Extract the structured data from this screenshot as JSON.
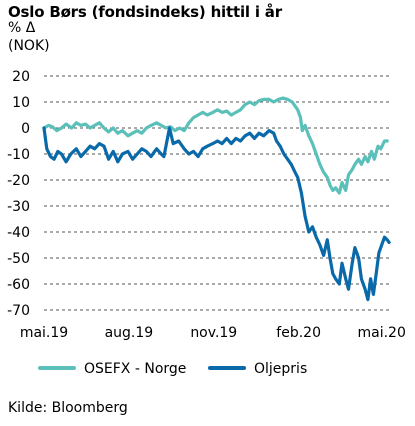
{
  "header": {
    "title": "Oslo Børs (fondsindeks) hittil i år",
    "unit_line1": "% Δ",
    "unit_line2": "(NOK)"
  },
  "source": "Kilde: Bloomberg",
  "colors": {
    "osefx": "#5bc0b9",
    "oljepris": "#0a6aa9",
    "grid": "#555555"
  },
  "chart_data": {
    "type": "line",
    "ylim": [
      -70,
      20
    ],
    "yticks": [
      20,
      10,
      0,
      -10,
      -20,
      -30,
      -40,
      -50,
      -60,
      -70
    ],
    "xlim": [
      "2019-05-01",
      "2020-05-10"
    ],
    "xticks": [
      {
        "date": "2019-05-01",
        "label": "mai.19"
      },
      {
        "date": "2019-08-01",
        "label": "aug.19"
      },
      {
        "date": "2019-11-01",
        "label": "nov.19"
      },
      {
        "date": "2020-02-01",
        "label": "feb.20"
      },
      {
        "date": "2020-05-01",
        "label": "mai.20"
      }
    ],
    "grid": "horizontal dashed",
    "legend_position": "bottom",
    "series": [
      {
        "name": "OSEFX - Norge",
        "color": "#5bc0b9",
        "points": [
          [
            "2019-05-01",
            0
          ],
          [
            "2019-05-06",
            1
          ],
          [
            "2019-05-10",
            0.5
          ],
          [
            "2019-05-15",
            -1
          ],
          [
            "2019-05-20",
            0
          ],
          [
            "2019-05-25",
            1.5
          ],
          [
            "2019-05-31",
            0
          ],
          [
            "2019-06-05",
            2
          ],
          [
            "2019-06-10",
            1
          ],
          [
            "2019-06-15",
            1.5
          ],
          [
            "2019-06-20",
            0
          ],
          [
            "2019-06-25",
            1
          ],
          [
            "2019-06-30",
            2
          ],
          [
            "2019-07-05",
            0
          ],
          [
            "2019-07-10",
            -1.5
          ],
          [
            "2019-07-15",
            0
          ],
          [
            "2019-07-20",
            -2
          ],
          [
            "2019-07-25",
            -1
          ],
          [
            "2019-07-31",
            -3
          ],
          [
            "2019-08-05",
            -2
          ],
          [
            "2019-08-10",
            -1
          ],
          [
            "2019-08-15",
            -2
          ],
          [
            "2019-08-20",
            0
          ],
          [
            "2019-08-25",
            1
          ],
          [
            "2019-08-31",
            2
          ],
          [
            "2019-09-05",
            1
          ],
          [
            "2019-09-10",
            0
          ],
          [
            "2019-09-15",
            0.5
          ],
          [
            "2019-09-20",
            -1
          ],
          [
            "2019-09-25",
            0
          ],
          [
            "2019-09-30",
            -1
          ],
          [
            "2019-10-05",
            2
          ],
          [
            "2019-10-10",
            4
          ],
          [
            "2019-10-15",
            5
          ],
          [
            "2019-10-20",
            6
          ],
          [
            "2019-10-25",
            5
          ],
          [
            "2019-10-31",
            6
          ],
          [
            "2019-11-05",
            7
          ],
          [
            "2019-11-10",
            6
          ],
          [
            "2019-11-15",
            6.5
          ],
          [
            "2019-11-20",
            5
          ],
          [
            "2019-11-25",
            6
          ],
          [
            "2019-11-30",
            7
          ],
          [
            "2019-12-05",
            9
          ],
          [
            "2019-12-10",
            10
          ],
          [
            "2019-12-15",
            9
          ],
          [
            "2019-12-20",
            10.5
          ],
          [
            "2019-12-25",
            11
          ],
          [
            "2019-12-31",
            11
          ],
          [
            "2020-01-05",
            10
          ],
          [
            "2020-01-10",
            11
          ],
          [
            "2020-01-15",
            11.5
          ],
          [
            "2020-01-20",
            11
          ],
          [
            "2020-01-25",
            10
          ],
          [
            "2020-01-31",
            7
          ],
          [
            "2020-02-03",
            4
          ],
          [
            "2020-02-05",
            -1
          ],
          [
            "2020-02-08",
            1
          ],
          [
            "2020-02-12",
            -3
          ],
          [
            "2020-02-16",
            -6
          ],
          [
            "2020-02-20",
            -10
          ],
          [
            "2020-02-24",
            -14
          ],
          [
            "2020-02-28",
            -17
          ],
          [
            "2020-03-03",
            -19
          ],
          [
            "2020-03-06",
            -22
          ],
          [
            "2020-03-09",
            -24
          ],
          [
            "2020-03-12",
            -23
          ],
          [
            "2020-03-16",
            -25
          ],
          [
            "2020-03-19",
            -21
          ],
          [
            "2020-03-23",
            -24
          ],
          [
            "2020-03-26",
            -18
          ],
          [
            "2020-03-30",
            -16
          ],
          [
            "2020-04-02",
            -14
          ],
          [
            "2020-04-06",
            -12
          ],
          [
            "2020-04-09",
            -14
          ],
          [
            "2020-04-13",
            -11
          ],
          [
            "2020-04-16",
            -13
          ],
          [
            "2020-04-20",
            -9
          ],
          [
            "2020-04-23",
            -12
          ],
          [
            "2020-04-27",
            -7
          ],
          [
            "2020-04-30",
            -8
          ],
          [
            "2020-05-04",
            -5
          ],
          [
            "2020-05-07",
            -5
          ]
        ]
      },
      {
        "name": "Oljepris",
        "color": "#0a6aa9",
        "points": [
          [
            "2019-05-01",
            0
          ],
          [
            "2019-05-04",
            -8
          ],
          [
            "2019-05-08",
            -11
          ],
          [
            "2019-05-12",
            -12
          ],
          [
            "2019-05-16",
            -9
          ],
          [
            "2019-05-20",
            -10
          ],
          [
            "2019-05-25",
            -13
          ],
          [
            "2019-05-30",
            -10
          ],
          [
            "2019-06-05",
            -8
          ],
          [
            "2019-06-10",
            -11
          ],
          [
            "2019-06-15",
            -9
          ],
          [
            "2019-06-20",
            -7
          ],
          [
            "2019-06-25",
            -8
          ],
          [
            "2019-06-30",
            -6
          ],
          [
            "2019-07-05",
            -7
          ],
          [
            "2019-07-10",
            -12
          ],
          [
            "2019-07-15",
            -9
          ],
          [
            "2019-07-20",
            -13
          ],
          [
            "2019-07-25",
            -10
          ],
          [
            "2019-07-31",
            -9
          ],
          [
            "2019-08-05",
            -12
          ],
          [
            "2019-08-10",
            -10
          ],
          [
            "2019-08-15",
            -8
          ],
          [
            "2019-08-20",
            -9
          ],
          [
            "2019-08-25",
            -11
          ],
          [
            "2019-08-31",
            -8
          ],
          [
            "2019-09-05",
            -10
          ],
          [
            "2019-09-08",
            -11
          ],
          [
            "2019-09-14",
            0
          ],
          [
            "2019-09-18",
            -6
          ],
          [
            "2019-09-24",
            -5
          ],
          [
            "2019-09-30",
            -8
          ],
          [
            "2019-10-05",
            -10
          ],
          [
            "2019-10-10",
            -9
          ],
          [
            "2019-10-15",
            -11
          ],
          [
            "2019-10-20",
            -8
          ],
          [
            "2019-10-25",
            -7
          ],
          [
            "2019-10-31",
            -6
          ],
          [
            "2019-11-05",
            -5
          ],
          [
            "2019-11-10",
            -6
          ],
          [
            "2019-11-15",
            -4
          ],
          [
            "2019-11-20",
            -6
          ],
          [
            "2019-11-25",
            -4
          ],
          [
            "2019-11-30",
            -5
          ],
          [
            "2019-12-05",
            -3
          ],
          [
            "2019-12-10",
            -2
          ],
          [
            "2019-12-15",
            -4
          ],
          [
            "2019-12-20",
            -2
          ],
          [
            "2019-12-25",
            -3
          ],
          [
            "2019-12-31",
            -1
          ],
          [
            "2020-01-05",
            -2
          ],
          [
            "2020-01-08",
            -5
          ],
          [
            "2020-01-12",
            -7
          ],
          [
            "2020-01-16",
            -10
          ],
          [
            "2020-01-20",
            -12
          ],
          [
            "2020-01-24",
            -14
          ],
          [
            "2020-01-28",
            -17
          ],
          [
            "2020-01-31",
            -19
          ],
          [
            "2020-02-04",
            -25
          ],
          [
            "2020-02-08",
            -34
          ],
          [
            "2020-02-12",
            -40
          ],
          [
            "2020-02-16",
            -38
          ],
          [
            "2020-02-20",
            -42
          ],
          [
            "2020-02-24",
            -45
          ],
          [
            "2020-02-28",
            -49
          ],
          [
            "2020-03-03",
            -43
          ],
          [
            "2020-03-06",
            -50
          ],
          [
            "2020-03-09",
            -56
          ],
          [
            "2020-03-12",
            -58
          ],
          [
            "2020-03-16",
            -60
          ],
          [
            "2020-03-19",
            -52
          ],
          [
            "2020-03-23",
            -58
          ],
          [
            "2020-03-26",
            -62
          ],
          [
            "2020-03-30",
            -52
          ],
          [
            "2020-04-02",
            -46
          ],
          [
            "2020-04-06",
            -50
          ],
          [
            "2020-04-09",
            -58
          ],
          [
            "2020-04-13",
            -62
          ],
          [
            "2020-04-16",
            -66
          ],
          [
            "2020-04-19",
            -58
          ],
          [
            "2020-04-22",
            -64
          ],
          [
            "2020-04-25",
            -56
          ],
          [
            "2020-04-28",
            -48
          ],
          [
            "2020-05-01",
            -45
          ],
          [
            "2020-05-04",
            -42
          ],
          [
            "2020-05-07",
            -43
          ],
          [
            "2020-05-09",
            -44
          ]
        ]
      }
    ]
  }
}
